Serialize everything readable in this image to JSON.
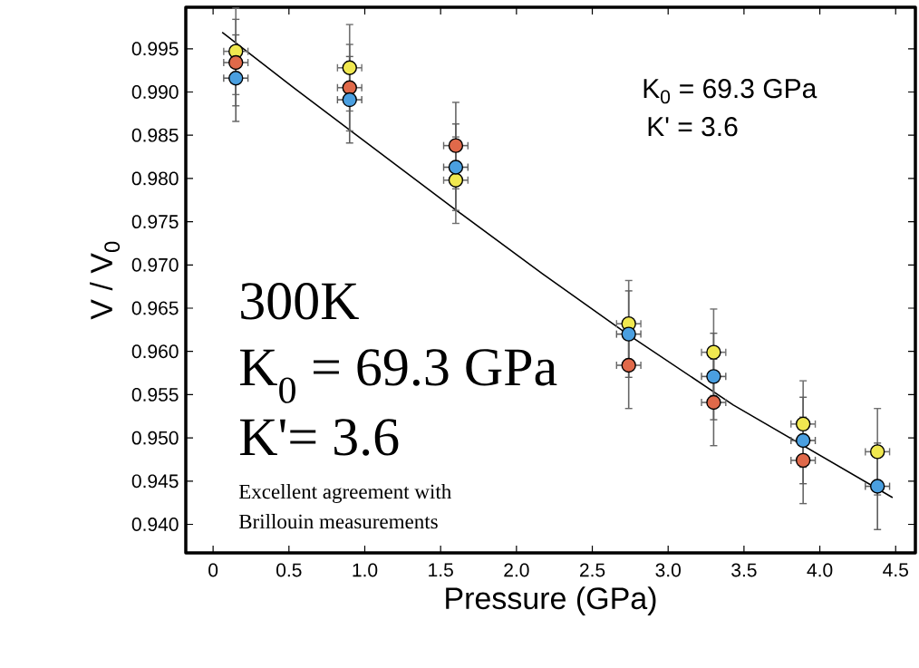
{
  "chart_data": {
    "type": "scatter",
    "xlabel": "Pressure  (GPa)",
    "ylabel": "V / V$_{0}$",
    "x": [
      0.15,
      0.9,
      1.6,
      2.74,
      3.3,
      3.89,
      4.38
    ],
    "series": [
      {
        "color": "#f0e850",
        "marker": "circle",
        "values": [
          0.9947,
          0.9928,
          0.9798,
          0.9632,
          0.9599,
          0.9516,
          0.9484
        ],
        "errors": [
          0.005,
          0.005,
          0.005,
          0.005,
          0.005,
          0.005,
          0.005
        ],
        "xerrors": [
          0.08,
          0.08,
          0.08,
          0.08,
          0.08,
          0.08,
          0.08
        ]
      },
      {
        "color": "#e0694a",
        "marker": "circle",
        "values": [
          0.9934,
          0.9905,
          0.9838,
          0.9584,
          0.9541,
          0.9474,
          null
        ],
        "errors": [
          0.005,
          0.005,
          0.005,
          0.005,
          0.005,
          0.005,
          null
        ],
        "xerrors": [
          0.08,
          0.08,
          0.08,
          0.08,
          0.08,
          0.08,
          null
        ]
      },
      {
        "color": "#4a9fe0",
        "marker": "circle",
        "values": [
          0.9916,
          0.9891,
          0.9813,
          0.962,
          0.9571,
          0.9497,
          0.9444
        ],
        "errors": [
          0.005,
          0.005,
          0.005,
          0.005,
          0.005,
          0.005,
          0.005
        ],
        "xerrors": [
          0.08,
          0.08,
          0.08,
          0.08,
          0.08,
          0.08,
          0.08
        ]
      },
      {
        "type": "line",
        "color": "#000000",
        "marker": "none",
        "x": [
          0.06,
          0.53,
          0.9,
          1.59,
          2.17,
          2.74,
          3.43,
          4.48
        ],
        "values": [
          0.9969,
          0.9905,
          0.9856,
          0.9765,
          0.969,
          0.9619,
          0.9538,
          0.9431
        ]
      }
    ],
    "xlim": [
      -0.18,
      4.63
    ],
    "ylim": [
      0.9367,
      0.9998
    ],
    "xticks": [
      {
        "value": 0,
        "label": "0"
      },
      {
        "value": 0.5,
        "label": "0.5"
      },
      {
        "value": 1,
        "label": "1.0"
      },
      {
        "value": 1.5,
        "label": "1.5"
      },
      {
        "value": 2,
        "label": "2.0"
      },
      {
        "value": 2.5,
        "label": "2.5"
      },
      {
        "value": 3,
        "label": "3.0"
      },
      {
        "value": 3.5,
        "label": "3.5"
      },
      {
        "value": 4,
        "label": "4.0"
      },
      {
        "value": 4.5,
        "label": "4.5"
      }
    ],
    "yticks": [
      {
        "value": 0.94,
        "label": "0.940"
      },
      {
        "value": 0.945,
        "label": "0.945"
      },
      {
        "value": 0.95,
        "label": "0.950"
      },
      {
        "value": 0.955,
        "label": "0.955"
      },
      {
        "value": 0.96,
        "label": "0.960"
      },
      {
        "value": 0.965,
        "label": "0.965"
      },
      {
        "value": 0.97,
        "label": "0.970"
      },
      {
        "value": 0.975,
        "label": "0.975"
      },
      {
        "value": 0.98,
        "label": "0.980"
      },
      {
        "value": 0.985,
        "label": "0.985"
      },
      {
        "value": 0.99,
        "label": "0.990"
      },
      {
        "value": 0.995,
        "label": "0.995"
      }
    ],
    "annotations": [
      "K$_{0}$ = 69.3 GPa",
      "K' = 3.6",
      "300K",
      "K$_{0}$ = 69.3 GPa",
      "K'= 3.6",
      "Excellent agreement with",
      "Brillouin measurements"
    ]
  }
}
